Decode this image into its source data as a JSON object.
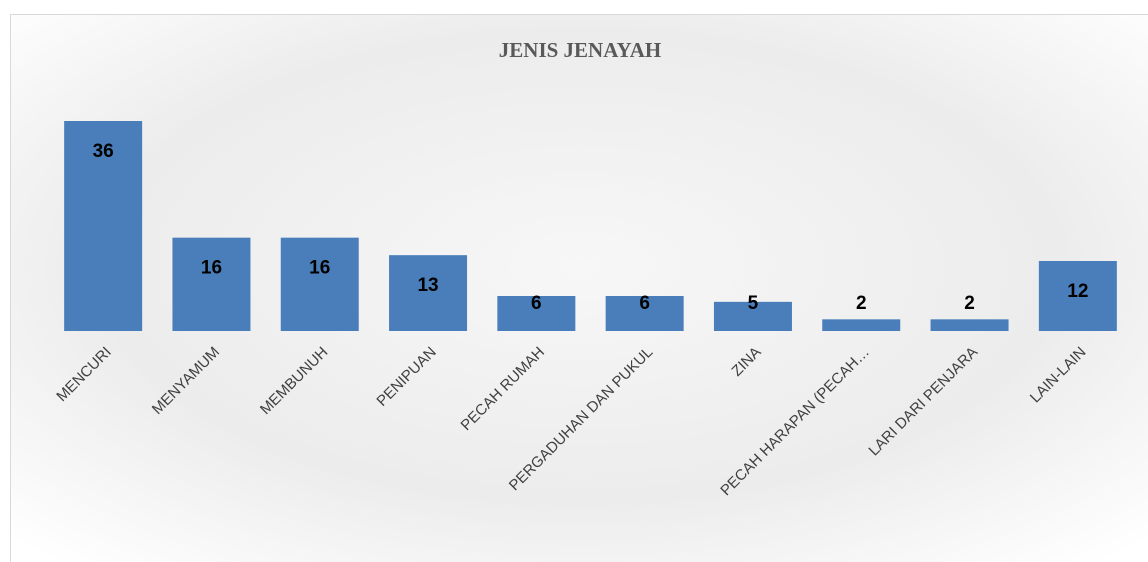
{
  "chart_data": {
    "type": "bar",
    "title": "JENIS JENAYAH",
    "categories": [
      "MENCURI",
      "MENYAMUM",
      "MEMBUNUH",
      "PENIPUAN",
      "PECAH RUMAH",
      "PERGADUHAN DAN PUKUL",
      "ZINA",
      "PECAH HARAPAN (PECAH…",
      "LARI DARI PENJARA",
      "LAIN-LAIN"
    ],
    "values": [
      36,
      16,
      16,
      13,
      6,
      6,
      5,
      2,
      2,
      12
    ],
    "color": "#4a7ebb"
  }
}
